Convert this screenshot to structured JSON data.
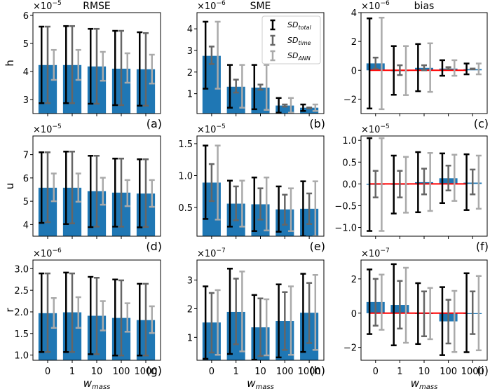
{
  "chart_data": {
    "type": "bar",
    "categories": [
      "0",
      "1",
      "10",
      "100",
      "1000"
    ],
    "xlabel": "w_mass",
    "xlabel_main": "w",
    "xlabel_sub": "mass",
    "column_titles": [
      "RMSE",
      "SME",
      "bias"
    ],
    "row_labels": [
      "h",
      "u",
      "r"
    ],
    "legend": {
      "placement": "top-right of panel (b)",
      "entries": [
        {
          "main": "SD",
          "sub": "total",
          "color": "#000000"
        },
        {
          "main": "SD",
          "sub": "time",
          "color": "#666666"
        },
        {
          "main": "SD",
          "sub": "ANN",
          "color": "#aaaaaa"
        }
      ]
    },
    "colors": {
      "bar": "#1f77b4",
      "sd_total": "#000000",
      "sd_time": "#666666",
      "sd_ann": "#aaaaaa",
      "zero_line": "#ff0000"
    },
    "panels": [
      {
        "id": "a",
        "label": "(a)",
        "row": "h",
        "metric": "RMSE",
        "title": "RMSE",
        "ylabel": "h",
        "scale_base": "×10",
        "scale_exp": "−5",
        "ylim": [
          2.5,
          6.1
        ],
        "yticks": [
          3,
          4,
          5,
          6
        ],
        "ytick_labels": [
          "3",
          "4",
          "5",
          "6"
        ],
        "show_xticklabels": false,
        "zero_line": false,
        "values": [
          4.23,
          4.23,
          4.18,
          4.1,
          4.08
        ],
        "sd_total": [
          [
            2.87,
            5.6
          ],
          [
            2.87,
            5.62
          ],
          [
            2.85,
            5.52
          ],
          [
            2.8,
            5.45
          ],
          [
            2.78,
            5.4
          ]
        ],
        "sd_time": [
          [
            2.87,
            5.6
          ],
          [
            2.87,
            5.62
          ],
          [
            2.85,
            5.52
          ],
          [
            2.8,
            5.45
          ],
          [
            2.78,
            5.37
          ]
        ],
        "sd_ann": [
          [
            3.7,
            4.77
          ],
          [
            3.7,
            4.77
          ],
          [
            3.67,
            4.7
          ],
          [
            3.6,
            4.65
          ],
          [
            3.57,
            4.6
          ]
        ]
      },
      {
        "id": "b",
        "label": "(b)",
        "row": "h",
        "metric": "SME",
        "title": "SME",
        "ylabel": "",
        "scale_base": "×10",
        "scale_exp": "−6",
        "ylim": [
          0.08,
          4.75
        ],
        "yticks": [
          1,
          2,
          3,
          4
        ],
        "ytick_labels": [
          "1",
          "2",
          "3",
          "4"
        ],
        "show_xticklabels": false,
        "zero_line": false,
        "legend": true,
        "values": [
          2.75,
          1.32,
          1.28,
          0.45,
          0.35
        ],
        "sd_total": [
          [
            1.23,
            4.33
          ],
          [
            0.35,
            2.33
          ],
          [
            0.28,
            2.33
          ],
          [
            0.12,
            0.8
          ],
          [
            0.2,
            0.5
          ]
        ],
        "sd_time": [
          [
            2.37,
            3.18
          ],
          [
            1.05,
            1.65
          ],
          [
            1.18,
            1.42
          ],
          [
            0.4,
            0.5
          ],
          [
            0.32,
            0.36
          ]
        ],
        "sd_ann": [
          [
            1.23,
            4.33
          ],
          [
            0.35,
            2.33
          ],
          [
            0.25,
            2.33
          ],
          [
            0.12,
            0.8
          ],
          [
            0.2,
            0.5
          ]
        ]
      },
      {
        "id": "c",
        "label": "(c)",
        "row": "h",
        "metric": "bias",
        "title": "bias",
        "ylabel": "",
        "scale_base": "×10",
        "scale_exp": "−6",
        "ylim": [
          -3.0,
          4.0
        ],
        "yticks": [
          -2,
          0,
          2,
          4
        ],
        "ytick_labels": [
          "−2",
          "0",
          "2",
          "4"
        ],
        "show_xticklabels": false,
        "zero_line": true,
        "values": [
          0.48,
          0.0,
          0.17,
          0.12,
          0.08
        ],
        "sd_total": [
          [
            -2.65,
            3.6
          ],
          [
            -1.7,
            1.68
          ],
          [
            -1.45,
            1.82
          ],
          [
            -0.38,
            0.7
          ],
          [
            -0.28,
            0.47
          ]
        ],
        "sd_time": [
          [
            0.1,
            0.88
          ],
          [
            -0.33,
            0.35
          ],
          [
            0.0,
            0.35
          ],
          [
            0.08,
            0.22
          ],
          [
            0.07,
            0.12
          ]
        ],
        "sd_ann": [
          [
            -2.7,
            3.65
          ],
          [
            -1.72,
            1.68
          ],
          [
            -1.5,
            1.87
          ],
          [
            -0.38,
            0.7
          ],
          [
            -0.28,
            0.47
          ]
        ]
      },
      {
        "id": "d",
        "label": "(d)",
        "row": "u",
        "metric": "RMSE",
        "title": "",
        "ylabel": "u",
        "scale_base": "×10",
        "scale_exp": "−5",
        "ylim": [
          3.5,
          7.8
        ],
        "yticks": [
          4,
          5,
          6,
          7
        ],
        "ytick_labels": [
          "4",
          "5",
          "6",
          "7"
        ],
        "show_xticklabels": false,
        "zero_line": false,
        "values": [
          5.58,
          5.58,
          5.43,
          5.37,
          5.33
        ],
        "sd_total": [
          [
            4.07,
            7.1
          ],
          [
            4.02,
            7.13
          ],
          [
            3.89,
            6.95
          ],
          [
            3.91,
            6.83
          ],
          [
            3.88,
            6.8
          ]
        ],
        "sd_time": [
          [
            4.1,
            7.1
          ],
          [
            4.05,
            7.13
          ],
          [
            3.91,
            6.95
          ],
          [
            3.91,
            6.83
          ],
          [
            3.9,
            6.8
          ]
        ],
        "sd_ann": [
          [
            5.0,
            6.19
          ],
          [
            4.98,
            6.19
          ],
          [
            4.85,
            6.01
          ],
          [
            4.79,
            5.91
          ],
          [
            4.76,
            5.91
          ]
        ]
      },
      {
        "id": "e",
        "label": "(e)",
        "row": "u",
        "metric": "SME",
        "title": "",
        "ylabel": "",
        "scale_base": "×10",
        "scale_exp": "−5",
        "ylim": [
          0.05,
          1.62
        ],
        "yticks": [
          0.5,
          1.0,
          1.5
        ],
        "ytick_labels": [
          "0.5",
          "1.0",
          "1.5"
        ],
        "show_xticklabels": false,
        "zero_line": false,
        "values": [
          0.89,
          0.56,
          0.55,
          0.47,
          0.48
        ],
        "sd_total": [
          [
            0.32,
            1.47
          ],
          [
            0.2,
            0.92
          ],
          [
            0.13,
            0.97
          ],
          [
            0.12,
            0.83
          ],
          [
            0.05,
            0.91
          ]
        ],
        "sd_time": [
          [
            0.6,
            1.18
          ],
          [
            0.3,
            0.83
          ],
          [
            0.31,
            0.8
          ],
          [
            0.23,
            0.7
          ],
          [
            0.24,
            0.72
          ]
        ],
        "sd_ann": [
          [
            0.31,
            1.47
          ],
          [
            0.2,
            0.92
          ],
          [
            0.14,
            0.97
          ],
          [
            0.13,
            0.8
          ],
          [
            0.05,
            0.91
          ]
        ]
      },
      {
        "id": "f",
        "label": "(f)",
        "row": "u",
        "metric": "bias",
        "title": "",
        "ylabel": "",
        "scale_base": "×10",
        "scale_exp": "−5",
        "ylim": [
          -1.2,
          1.1
        ],
        "yticks": [
          -1.0,
          -0.5,
          0.0,
          0.5,
          1.0
        ],
        "ytick_labels": [
          "−1.0",
          "−0.5",
          "0.0",
          "0.5",
          "1.0"
        ],
        "show_xticklabels": false,
        "zero_line": true,
        "values": [
          -0.01,
          0.0,
          0.04,
          0.13,
          0.03
        ],
        "sd_total": [
          [
            -1.08,
            1.05
          ],
          [
            -0.68,
            0.65
          ],
          [
            -0.65,
            0.73
          ],
          [
            -0.44,
            0.7
          ],
          [
            -0.6,
            0.68
          ]
        ],
        "sd_time": [
          [
            -0.31,
            0.3
          ],
          [
            -0.31,
            0.3
          ],
          [
            -0.24,
            0.35
          ],
          [
            -0.15,
            0.42
          ],
          [
            -0.24,
            0.33
          ]
        ],
        "sd_ann": [
          [
            -1.08,
            1.05
          ],
          [
            -0.66,
            0.62
          ],
          [
            -0.62,
            0.71
          ],
          [
            -0.39,
            0.67
          ],
          [
            -0.57,
            0.65
          ]
        ]
      },
      {
        "id": "g",
        "label": "(g)",
        "row": "r",
        "metric": "RMSE",
        "title": "",
        "ylabel": "r",
        "scale_base": "×10",
        "scale_exp": "−6",
        "ylim": [
          0.88,
          3.2
        ],
        "yticks": [
          1.0,
          1.5,
          2.0,
          2.5,
          3.0
        ],
        "ytick_labels": [
          "1.0",
          "1.5",
          "2.0",
          "2.5",
          "3.0"
        ],
        "show_xticklabels": true,
        "zero_line": false,
        "values": [
          1.97,
          1.99,
          1.91,
          1.86,
          1.81
        ],
        "sd_total": [
          [
            1.07,
            2.89
          ],
          [
            1.07,
            2.91
          ],
          [
            1.02,
            2.81
          ],
          [
            0.99,
            2.75
          ],
          [
            0.99,
            2.65
          ]
        ],
        "sd_time": [
          [
            1.07,
            2.89
          ],
          [
            1.07,
            2.89
          ],
          [
            1.02,
            2.79
          ],
          [
            0.99,
            2.73
          ],
          [
            0.99,
            2.65
          ]
        ],
        "sd_ann": [
          [
            1.63,
            2.32
          ],
          [
            1.63,
            2.34
          ],
          [
            1.57,
            2.25
          ],
          [
            1.54,
            2.2
          ],
          [
            1.51,
            2.13
          ]
        ]
      },
      {
        "id": "h",
        "label": "(h)",
        "row": "r",
        "metric": "SME",
        "title": "",
        "ylabel": "",
        "scale_base": "×10",
        "scale_exp": "−7",
        "ylim": [
          0.2,
          3.7
        ],
        "yticks": [
          1,
          2,
          3
        ],
        "ytick_labels": [
          "1",
          "2",
          "3"
        ],
        "show_xticklabels": true,
        "zero_line": false,
        "values": [
          1.52,
          1.89,
          1.35,
          1.57,
          1.86
        ],
        "sd_total": [
          [
            0.25,
            2.78
          ],
          [
            0.42,
            3.4
          ],
          [
            0.22,
            2.48
          ],
          [
            0.3,
            2.85
          ],
          [
            0.49,
            3.22
          ]
        ],
        "sd_time": [
          [
            0.47,
            2.55
          ],
          [
            0.76,
            3.05
          ],
          [
            0.35,
            2.36
          ],
          [
            0.56,
            2.58
          ],
          [
            0.8,
            2.9
          ]
        ],
        "sd_ann": [
          [
            0.39,
            2.65
          ],
          [
            0.51,
            3.3
          ],
          [
            0.37,
            2.33
          ],
          [
            0.39,
            2.78
          ],
          [
            0.56,
            3.18
          ]
        ]
      },
      {
        "id": "i",
        "label": "(i)",
        "row": "r",
        "metric": "bias",
        "title": "",
        "ylabel": "",
        "scale_base": "×10",
        "scale_exp": "−7",
        "ylim": [
          -2.75,
          3.1
        ],
        "yticks": [
          -2,
          0,
          2
        ],
        "ytick_labels": [
          "−2",
          "0",
          "2"
        ],
        "show_xticklabels": true,
        "zero_line": true,
        "values": [
          0.65,
          0.48,
          0.0,
          -0.48,
          0.0
        ],
        "sd_total": [
          [
            -1.22,
            2.55
          ],
          [
            -1.88,
            2.86
          ],
          [
            -1.8,
            1.75
          ],
          [
            -2.45,
            1.52
          ],
          [
            -2.28,
            2.33
          ]
        ],
        "sd_time": [
          [
            -0.73,
            2.0
          ],
          [
            -0.9,
            1.88
          ],
          [
            -1.35,
            1.27
          ],
          [
            -1.77,
            0.78
          ],
          [
            -1.22,
            1.27
          ]
        ],
        "sd_ann": [
          [
            -0.97,
            2.25
          ],
          [
            -1.73,
            2.65
          ],
          [
            -1.52,
            1.47
          ],
          [
            -2.27,
            1.3
          ],
          [
            -2.17,
            2.17
          ]
        ]
      }
    ]
  }
}
